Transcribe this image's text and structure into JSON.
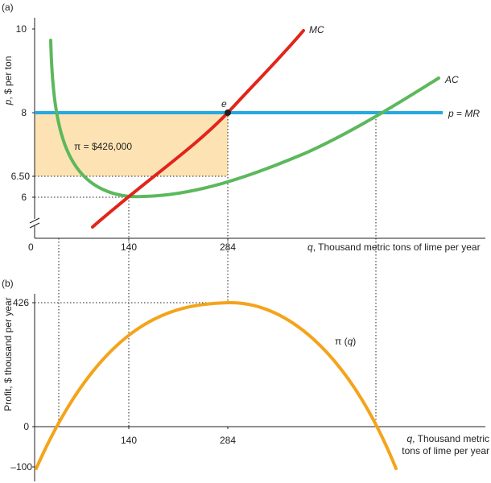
{
  "chart_data": [
    {
      "panel": "(a)",
      "type": "line",
      "ylabel": "p, $ per ton",
      "xlabel": "q, Thousand metric tons of lime per year",
      "yticks": [
        "10",
        "8",
        "6.50",
        "6"
      ],
      "xticks": [
        "140",
        "284"
      ],
      "origin_label": "0",
      "series": [
        {
          "name": "MC",
          "color": "#e1251b",
          "x": [
            90,
            140,
            200,
            284,
            340,
            400
          ],
          "y": [
            5.05,
            5.86,
            6.8,
            8.0,
            9.0,
            10.3
          ]
        },
        {
          "name": "AC",
          "color": "#5cb85c",
          "x": [
            28,
            40,
            70,
            100,
            140,
            200,
            284,
            350,
            420,
            480
          ],
          "y": [
            9.85,
            8.0,
            6.55,
            6.1,
            6.0,
            6.12,
            6.5,
            7.15,
            8.0,
            8.8
          ]
        },
        {
          "name": "p = MR",
          "color": "#24a9e1",
          "x": [
            0,
            500
          ],
          "y": [
            8,
            8
          ]
        }
      ],
      "annotations": {
        "equilibrium_point": "e",
        "profit_label": "π = $426,000",
        "profit_area_color": "#fde3b3",
        "profit_rect": {
          "q": [
            0,
            284
          ],
          "p": [
            6.5,
            8
          ]
        }
      },
      "ylim": [
        5,
        10
      ],
      "xlim": [
        0,
        500
      ]
    },
    {
      "panel": "(b)",
      "type": "line",
      "ylabel": "Profit, $ thousand per year",
      "xlabel": "q, Thousand metric tons of lime per year",
      "yticks": [
        "426",
        "0",
        "–100"
      ],
      "xticks": [
        "140",
        "284"
      ],
      "series": [
        {
          "name": "π (q)",
          "color": "#f5a31a",
          "x": [
            0,
            40,
            140,
            284,
            420,
            480
          ],
          "y": [
            -100,
            0,
            300,
            426,
            0,
            -100
          ]
        }
      ],
      "ylim": [
        -100,
        426
      ],
      "xlim": [
        0,
        480
      ]
    }
  ],
  "panel_a": {
    "tag": "(a)",
    "ylabel": "p, $ per ton",
    "tick_10": "10",
    "tick_8": "8",
    "tick_650": "6.50",
    "tick_6": "6",
    "origin": "0",
    "x140": "140",
    "x284": "284",
    "xlabel_q": "q",
    "xlabel_rest": ", Thousand metric tons of lime per year",
    "mc": "MC",
    "ac": "AC",
    "pmr_p": "p",
    "pmr_eq": " = ",
    "pmr_mr": "MR",
    "e": "e",
    "profit": "π = $426,000"
  },
  "panel_b": {
    "tag": "(b)",
    "ylabel": "Profit, $ thousand per year",
    "tick_426": "426",
    "tick_0": "0",
    "tick_m100": "–100",
    "x140": "140",
    "x284": "284",
    "xlabel_line1_q": "q",
    "xlabel_line1_rest": ", Thousand metric",
    "xlabel_line2": "tons of lime per year",
    "pi_label_pre": "π (",
    "pi_label_q": "q",
    "pi_label_post": ")"
  }
}
